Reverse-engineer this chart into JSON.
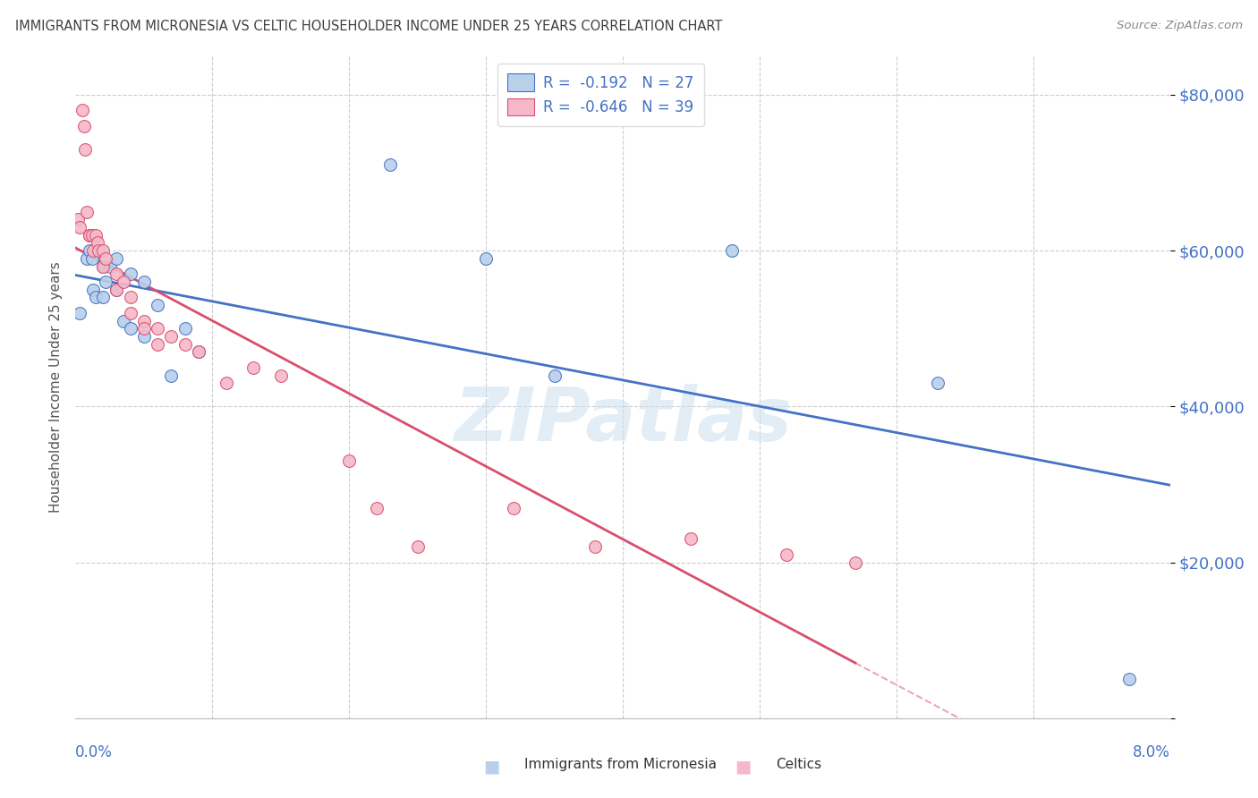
{
  "title": "IMMIGRANTS FROM MICRONESIA VS CELTIC HOUSEHOLDER INCOME UNDER 25 YEARS CORRELATION CHART",
  "source": "Source: ZipAtlas.com",
  "ylabel": "Householder Income Under 25 years",
  "watermark": "ZIPatlas",
  "legend1_label": "R =  -0.192   N = 27",
  "legend2_label": "R =  -0.646   N = 39",
  "scatter_micronesia_color": "#b8d0ea",
  "scatter_celtics_color": "#f4b8c8",
  "line_micronesia_color": "#4472c4",
  "line_celtics_color": "#d94f6e",
  "axis_label_color": "#4472c4",
  "ytick_color": "#4472c4",
  "title_color": "#404040",
  "background_color": "#ffffff",
  "grid_color": "#cccccc",
  "xlim": [
    0.0,
    0.08
  ],
  "ylim": [
    0,
    85000
  ],
  "yticks": [
    0,
    20000,
    40000,
    60000,
    80000
  ],
  "ytick_labels": [
    "",
    "$20,000",
    "$40,000",
    "$60,000",
    "$80,000"
  ],
  "micronesia_points": [
    [
      0.0003,
      52000
    ],
    [
      0.0008,
      59000
    ],
    [
      0.001,
      60000
    ],
    [
      0.0012,
      59000
    ],
    [
      0.0013,
      55000
    ],
    [
      0.0015,
      54000
    ],
    [
      0.002,
      58000
    ],
    [
      0.002,
      54000
    ],
    [
      0.0022,
      56000
    ],
    [
      0.0025,
      58000
    ],
    [
      0.003,
      59000
    ],
    [
      0.003,
      55000
    ],
    [
      0.0035,
      51000
    ],
    [
      0.004,
      57000
    ],
    [
      0.004,
      50000
    ],
    [
      0.005,
      56000
    ],
    [
      0.005,
      49000
    ],
    [
      0.006,
      53000
    ],
    [
      0.007,
      44000
    ],
    [
      0.008,
      50000
    ],
    [
      0.009,
      47000
    ],
    [
      0.023,
      71000
    ],
    [
      0.03,
      59000
    ],
    [
      0.035,
      44000
    ],
    [
      0.048,
      60000
    ],
    [
      0.063,
      43000
    ],
    [
      0.077,
      5000
    ]
  ],
  "celtics_points": [
    [
      0.0002,
      64000
    ],
    [
      0.0003,
      63000
    ],
    [
      0.0005,
      78000
    ],
    [
      0.0006,
      76000
    ],
    [
      0.0007,
      73000
    ],
    [
      0.0008,
      65000
    ],
    [
      0.001,
      62000
    ],
    [
      0.001,
      62000
    ],
    [
      0.0012,
      62000
    ],
    [
      0.0013,
      60000
    ],
    [
      0.0015,
      62000
    ],
    [
      0.0016,
      61000
    ],
    [
      0.0017,
      60000
    ],
    [
      0.002,
      60000
    ],
    [
      0.002,
      58000
    ],
    [
      0.0022,
      59000
    ],
    [
      0.003,
      57000
    ],
    [
      0.003,
      55000
    ],
    [
      0.0035,
      56000
    ],
    [
      0.004,
      54000
    ],
    [
      0.004,
      52000
    ],
    [
      0.005,
      51000
    ],
    [
      0.005,
      50000
    ],
    [
      0.006,
      50000
    ],
    [
      0.006,
      48000
    ],
    [
      0.007,
      49000
    ],
    [
      0.008,
      48000
    ],
    [
      0.009,
      47000
    ],
    [
      0.011,
      43000
    ],
    [
      0.013,
      45000
    ],
    [
      0.015,
      44000
    ],
    [
      0.02,
      33000
    ],
    [
      0.022,
      27000
    ],
    [
      0.025,
      22000
    ],
    [
      0.032,
      27000
    ],
    [
      0.038,
      22000
    ],
    [
      0.045,
      23000
    ],
    [
      0.052,
      21000
    ],
    [
      0.057,
      20000
    ]
  ]
}
